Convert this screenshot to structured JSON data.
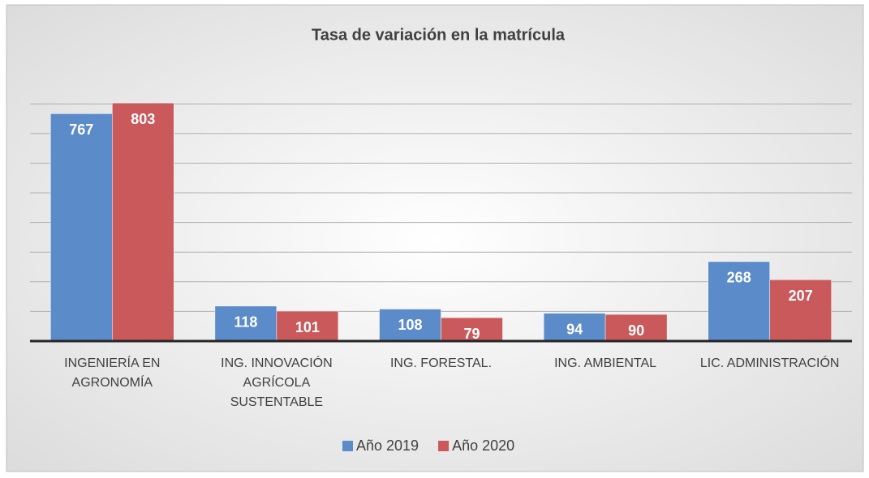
{
  "chart_data": {
    "type": "bar",
    "title": "Tasa de variación en la matrícula",
    "categories": [
      "INGENIERÍA EN AGRONOMÍA",
      "ING. INNOVACIÓN AGRÍCOLA SUSTENTABLE",
      "ING. FORESTAL.",
      "ING. AMBIENTAL",
      "LIC. ADMINISTRACIÓN"
    ],
    "series": [
      {
        "name": "Año 2019",
        "color": "#5b8bc9",
        "values": [
          767,
          118,
          108,
          94,
          268
        ]
      },
      {
        "name": "Año 2020",
        "color": "#c9595a",
        "values": [
          803,
          101,
          79,
          90,
          207
        ]
      }
    ],
    "ylim": [
      0,
      900
    ],
    "yticks": [
      0,
      100,
      200,
      300,
      400,
      500,
      600,
      700,
      800
    ],
    "grid": true,
    "legend": "bottom"
  }
}
